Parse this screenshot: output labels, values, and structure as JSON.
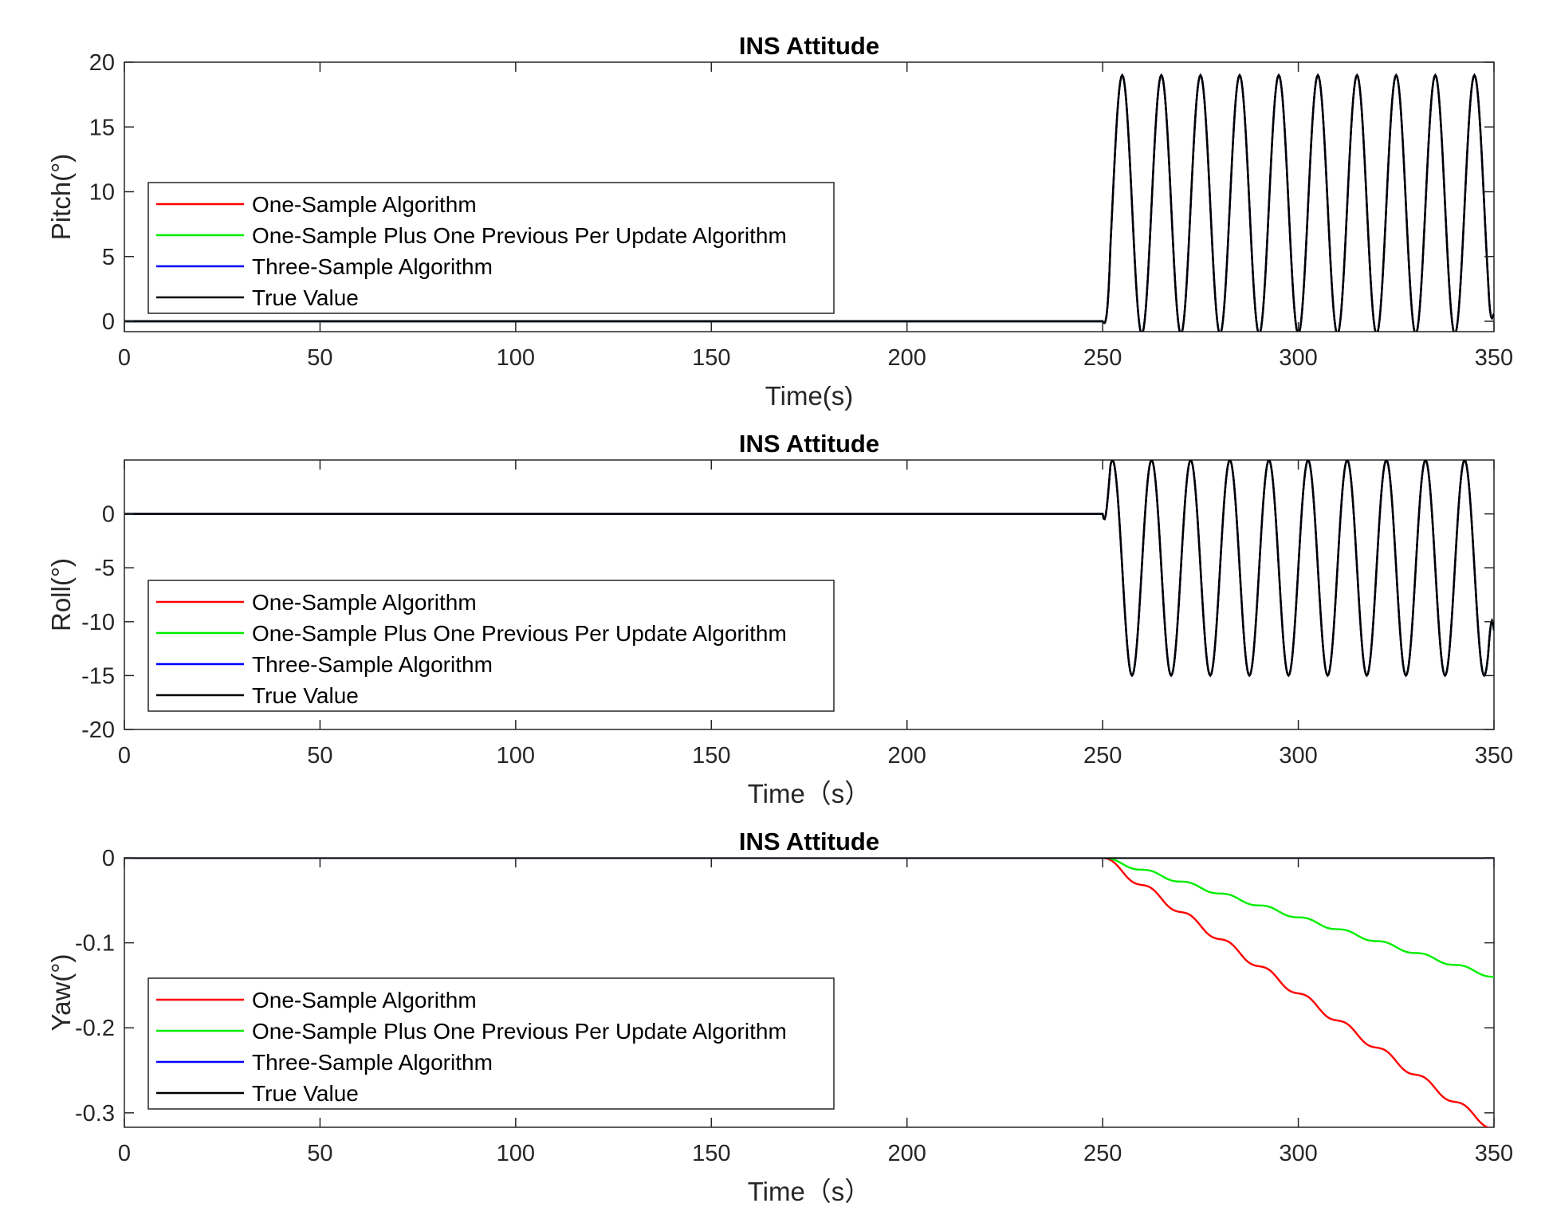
{
  "colors": {
    "one_sample": "#ff0000",
    "one_plus_prev": "#00ee00",
    "three_sample": "#0000ff",
    "true_value": "#000000",
    "axis": "#262626"
  },
  "chart_data": [
    {
      "type": "line",
      "title": "INS Attitude",
      "xlabel": "Time(s)",
      "ylabel": "Pitch(°)",
      "xlim": [
        0,
        350
      ],
      "ylim": [
        -0.8,
        20
      ],
      "xticks": [
        "0",
        "50",
        "100",
        "150",
        "200",
        "250",
        "300",
        "350"
      ],
      "yticks": [
        "0",
        "5",
        "10",
        "15",
        "20"
      ],
      "ytick_values": [
        0,
        5,
        10,
        15,
        20
      ],
      "legend": [
        "One-Sample Algorithm",
        "One-Sample Plus One Previous Per Update Algorithm",
        "Three-Sample Algorithm",
        "True Value"
      ],
      "legend_position": "center-left",
      "signal": {
        "start": 250,
        "center": 9,
        "amplitude": 10,
        "period": 10,
        "phase_time": 255
      },
      "end_value": 0.6,
      "series": [
        {
          "name": "One-Sample Algorithm",
          "color_key": "one_sample"
        },
        {
          "name": "One-Sample Plus One Previous Per Update Algorithm",
          "color_key": "one_plus_prev"
        },
        {
          "name": "Three-Sample Algorithm",
          "color_key": "three_sample"
        },
        {
          "name": "True Value",
          "color_key": "true_value"
        }
      ]
    },
    {
      "type": "line",
      "title": "INS Attitude",
      "xlabel": "Time（s）",
      "ylabel": "Roll(°)",
      "xlim": [
        0,
        350
      ],
      "ylim": [
        -20,
        5
      ],
      "xticks": [
        "0",
        "50",
        "100",
        "150",
        "200",
        "250",
        "300",
        "350"
      ],
      "yticks": [
        "0",
        "-5",
        "-10",
        "-15",
        "-20"
      ],
      "ytick_values": [
        0,
        -5,
        -10,
        -15,
        -20
      ],
      "legend": [
        "One-Sample Algorithm",
        "One-Sample Plus One Previous Per Update Algorithm",
        "Three-Sample Algorithm",
        "True Value"
      ],
      "legend_position": "center-left",
      "signal": {
        "start": 250,
        "center": -5,
        "amplitude": 10,
        "period": 10,
        "phase_time": 252.5
      },
      "end_value": -10.8,
      "series": [
        {
          "name": "One-Sample Algorithm",
          "color_key": "one_sample"
        },
        {
          "name": "One-Sample Plus One Previous Per Update Algorithm",
          "color_key": "one_plus_prev"
        },
        {
          "name": "Three-Sample Algorithm",
          "color_key": "three_sample"
        },
        {
          "name": "True Value",
          "color_key": "true_value"
        }
      ]
    },
    {
      "type": "line",
      "title": "INS Attitude",
      "xlabel": "Time（s）",
      "ylabel": "Yaw(°)",
      "xlim": [
        0,
        350
      ],
      "ylim": [
        -0.317,
        0
      ],
      "xticks": [
        "0",
        "50",
        "100",
        "150",
        "200",
        "250",
        "300",
        "350"
      ],
      "yticks": [
        "0",
        "-0.1",
        "-0.2",
        "-0.3"
      ],
      "ytick_values": [
        0,
        -0.1,
        -0.2,
        -0.3
      ],
      "legend": [
        "One-Sample Algorithm",
        "One-Sample Plus One Previous Per Update Algorithm",
        "Three-Sample Algorithm",
        "True Value"
      ],
      "legend_position": "center-left",
      "drift": {
        "start": 250,
        "one_sample_final": -0.315,
        "one_plus_prev_final": -0.14,
        "period": 10
      },
      "series": [
        {
          "name": "One-Sample Algorithm",
          "color_key": "one_sample",
          "points": [
            [
              250,
              0
            ],
            [
              260,
              -0.025
            ],
            [
              270,
              -0.055
            ],
            [
              280,
              -0.088
            ],
            [
              290,
              -0.12
            ],
            [
              300,
              -0.152
            ],
            [
              310,
              -0.185
            ],
            [
              320,
              -0.218
            ],
            [
              330,
              -0.25
            ],
            [
              340,
              -0.282
            ],
            [
              347,
              -0.317
            ],
            [
              350,
              -0.313
            ]
          ]
        },
        {
          "name": "One-Sample Plus One Previous Per Update Algorithm",
          "color_key": "one_plus_prev",
          "points": [
            [
              250,
              0
            ],
            [
              260,
              -0.014
            ],
            [
              270,
              -0.028
            ],
            [
              280,
              -0.042
            ],
            [
              290,
              -0.056
            ],
            [
              300,
              -0.07
            ],
            [
              310,
              -0.084
            ],
            [
              320,
              -0.098
            ],
            [
              330,
              -0.112
            ],
            [
              340,
              -0.126
            ],
            [
              345,
              -0.14
            ],
            [
              350,
              -0.138
            ]
          ]
        },
        {
          "name": "Three-Sample Algorithm",
          "color_key": "three_sample",
          "points": [
            [
              0,
              0
            ],
            [
              350,
              0
            ]
          ]
        },
        {
          "name": "True Value",
          "color_key": "true_value",
          "points": [
            [
              0,
              0
            ],
            [
              350,
              0
            ]
          ]
        }
      ]
    }
  ]
}
